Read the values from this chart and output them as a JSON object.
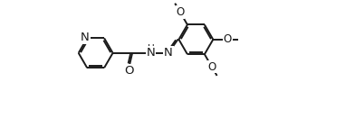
{
  "bg_color": "#ffffff",
  "line_color": "#1a1a1a",
  "line_width": 1.4,
  "font_size": 8.5,
  "xlim": [
    -0.5,
    12.5
  ],
  "ylim": [
    0.5,
    7.5
  ],
  "figsize": [
    3.92,
    1.52
  ],
  "dpi": 100
}
